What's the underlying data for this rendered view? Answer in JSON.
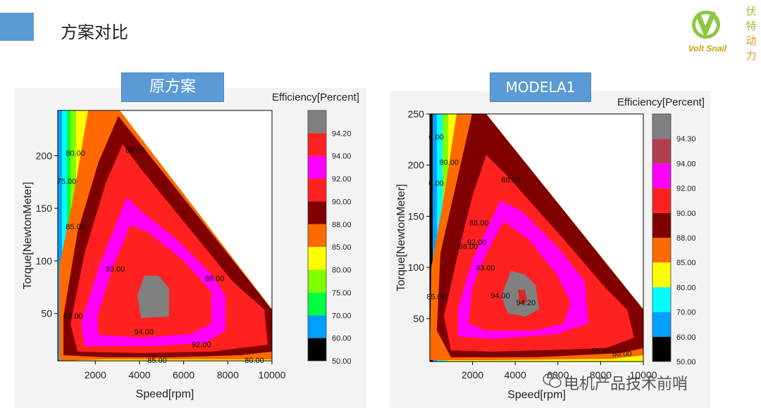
{
  "header": {
    "title": "方案对比"
  },
  "logo": {
    "brand": "Volt Snail",
    "chars": [
      "伏",
      "特",
      "动",
      "力"
    ]
  },
  "watermark": {
    "text": "电机产品技术前哨"
  },
  "chart_data": [
    {
      "type": "contour",
      "panel_label": "原方案",
      "xlabel": "Speed[rpm]",
      "ylabel": "Torque[NewtonMeter]",
      "legend_title": "Efficiency[Percent]",
      "xlim": [
        300,
        10000
      ],
      "ylim": [
        5,
        243
      ],
      "x_ticks": [
        2000,
        4000,
        6000,
        8000,
        10000
      ],
      "y_ticks": [
        50,
        100,
        150,
        200
      ],
      "legend_levels": [
        "94.20",
        "94.00",
        "92.00",
        "90.00",
        "88.00",
        "85.00",
        "80.00",
        "75.00",
        "70.00",
        "60.00",
        "50.00"
      ],
      "legend_colors": [
        "#808080",
        "#ff2020",
        "#ff00ff",
        "#ff2020",
        "#800000",
        "#ff6a00",
        "#ffff00",
        "#80ff00",
        "#00ff40",
        "#00a0ff",
        "#000000"
      ],
      "contour_labels": [
        {
          "x": 1100,
          "y": 200,
          "text": "80.00"
        },
        {
          "x": 3800,
          "y": 203,
          "text": "88.00"
        },
        {
          "x": 700,
          "y": 173,
          "text": "75.00"
        },
        {
          "x": 1100,
          "y": 130,
          "text": "85.00"
        },
        {
          "x": 2900,
          "y": 90,
          "text": "93.00"
        },
        {
          "x": 7400,
          "y": 81,
          "text": "88.00"
        },
        {
          "x": 4200,
          "y": 30,
          "text": "94.00"
        },
        {
          "x": 1000,
          "y": 45,
          "text": "88.00"
        },
        {
          "x": 6800,
          "y": 18,
          "text": "92.00"
        },
        {
          "x": 4800,
          "y": 3,
          "text": "85.00"
        },
        {
          "x": 9200,
          "y": 3,
          "text": "80.00"
        }
      ]
    },
    {
      "type": "contour",
      "panel_label": "MODELA1",
      "xlabel": "Speed[rpm]",
      "ylabel": "Torque[NewtonMeter]",
      "legend_title": "Efficiency[Percent]",
      "xlim": [
        0,
        10000
      ],
      "ylim": [
        8,
        250
      ],
      "x_ticks": [
        2000,
        4000,
        6000,
        8000,
        10000
      ],
      "y_ticks": [
        50,
        100,
        150,
        200,
        250
      ],
      "legend_levels": [
        "94.30",
        "94.00",
        "92.00",
        "90.00",
        "88.00",
        "85.00",
        "80.00",
        "70.00",
        "60.00",
        "50.00"
      ],
      "legend_colors": [
        "#808080",
        "#b04050",
        "#ff00ff",
        "#ff2020",
        "#800000",
        "#ff6a00",
        "#ffff00",
        "#00ffff",
        "#00a0ff",
        "#000000"
      ],
      "contour_labels": [
        {
          "x": 300,
          "y": 225,
          "text": "0.00"
        },
        {
          "x": 900,
          "y": 200,
          "text": "80.00"
        },
        {
          "x": 300,
          "y": 180,
          "text": "0.00"
        },
        {
          "x": 3800,
          "y": 183,
          "text": "88.00"
        },
        {
          "x": 2300,
          "y": 141,
          "text": "88.00"
        },
        {
          "x": 1800,
          "y": 118,
          "text": "88.00"
        },
        {
          "x": 2200,
          "y": 122,
          "text": "92.00"
        },
        {
          "x": 2600,
          "y": 97,
          "text": "93.00"
        },
        {
          "x": 3300,
          "y": 70,
          "text": "94.00"
        },
        {
          "x": 4500,
          "y": 63,
          "text": "94.20"
        },
        {
          "x": 300,
          "y": 69,
          "text": "85.00"
        },
        {
          "x": 8000,
          "y": 16,
          "text": "85.00"
        },
        {
          "x": 9000,
          "y": 13,
          "text": "80.00"
        }
      ]
    }
  ]
}
